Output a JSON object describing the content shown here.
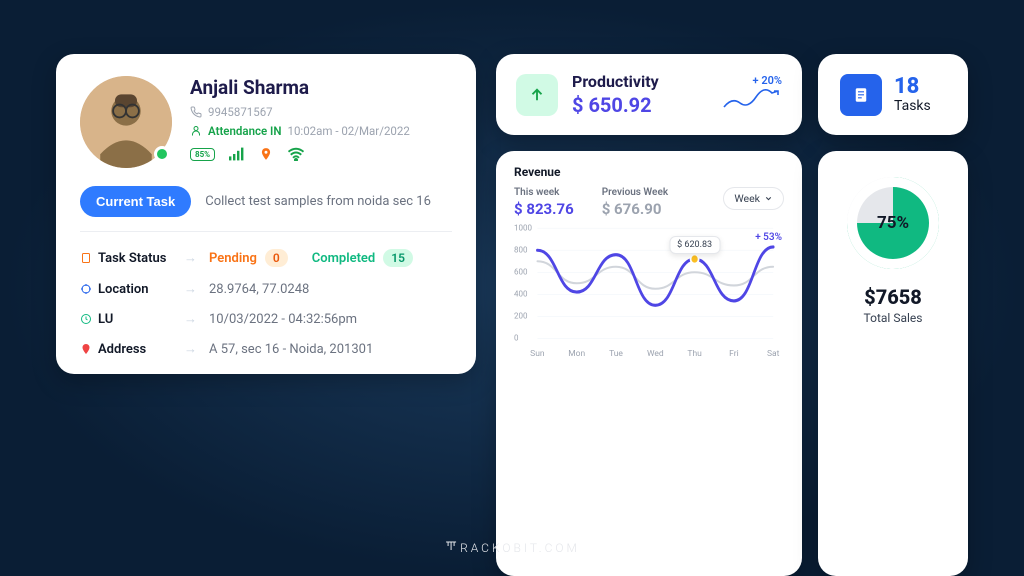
{
  "colors": {
    "accent": "#4f46e5",
    "blue": "#2563eb",
    "green": "#16a34a",
    "orange": "#f97316",
    "card_bg": "#ffffff",
    "page_bg_inner": "#1a3a5c",
    "page_bg_outer": "#0a1e35"
  },
  "profile": {
    "name": "Anjali Sharma",
    "phone": "9945871567",
    "attendance_label": "Attendance IN",
    "attendance_time": "10:02am - 02/Mar/2022",
    "battery": "85%",
    "signal_color": "#16a34a",
    "location_pin_color": "#f97316",
    "wifi_color": "#16a34a",
    "current_task_btn": "Current Task",
    "current_task_text": "Collect test samples from noida sec 16",
    "rows": {
      "task_status": {
        "label": "Task Status",
        "pending_label": "Pending",
        "pending_count": "0",
        "completed_label": "Completed",
        "completed_count": "15"
      },
      "location": {
        "label": "Location",
        "value": "28.9764, 77.0248"
      },
      "lu": {
        "label": "LU",
        "value": "10/03/2022  -  04:32:56pm"
      },
      "address": {
        "label": "Address",
        "value": "A 57, sec 16 - Noida, 201301"
      }
    }
  },
  "productivity": {
    "title": "Productivity",
    "value": "$ 650.92",
    "change": "+ 20%",
    "icon_bg": "#d1fae5",
    "icon_color": "#16a34a"
  },
  "tasks": {
    "count": "18",
    "label": "Tasks",
    "icon_bg": "#2563eb"
  },
  "revenue": {
    "title": "Revenue",
    "this_week_label": "This week",
    "this_week_value": "$ 823.76",
    "this_week_color": "#4f46e5",
    "prev_week_label": "Previous Week",
    "prev_week_value": "$ 676.90",
    "prev_week_color": "#9ca3af",
    "dropdown": "Week",
    "tooltip_value": "$ 620.83",
    "change_pct": "+ 53%",
    "chart": {
      "type": "line",
      "x_categories": [
        "Sun",
        "Mon",
        "Tue",
        "Wed",
        "Thu",
        "Fri",
        "Sat"
      ],
      "ylim": [
        0,
        1000
      ],
      "ytick_step": 200,
      "series": [
        {
          "name": "this_week",
          "color": "#4f46e5",
          "stroke_width": 3,
          "values": [
            800,
            420,
            760,
            300,
            720,
            340,
            830
          ]
        },
        {
          "name": "prev_week",
          "color": "#d1d5db",
          "stroke_width": 2,
          "values": [
            700,
            500,
            650,
            450,
            600,
            480,
            650
          ]
        }
      ],
      "marker": {
        "index": 4,
        "color": "#fbbf24"
      },
      "grid_color": "#f1f5f9",
      "label_fontsize": 8
    }
  },
  "sales": {
    "percent": "75%",
    "ring_color": "#10b981",
    "ring_bg": "#e5e7eb",
    "amount": "$7658",
    "label": "Total Sales"
  },
  "brand": "RACKOBIT.COM"
}
